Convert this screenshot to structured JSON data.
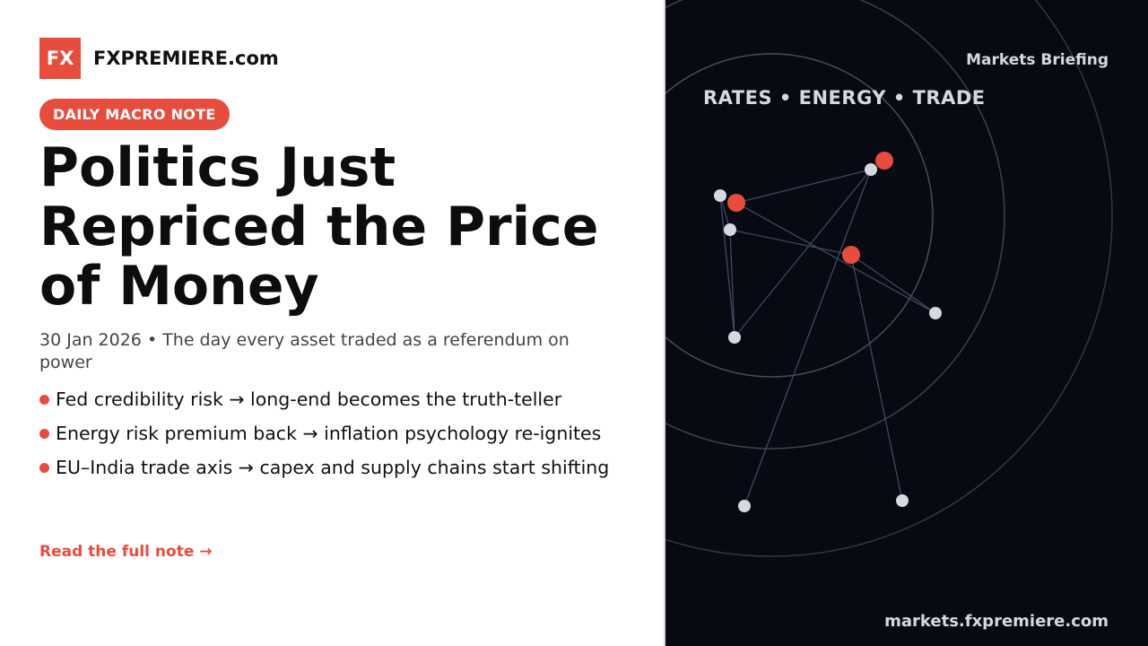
{
  "brand": {
    "logo_text": "FX",
    "name": "FXPREMIERE.com",
    "accent": "#e84c3d"
  },
  "badge": "DAILY MACRO NOTE",
  "headline": {
    "lines": [
      "Politics Just",
      "Repriced the Price",
      "of Money"
    ]
  },
  "subtitle": "30 Jan 2026 • The day every asset traded as a referendum on power",
  "bullets": [
    "Fed credibility risk → long-end becomes the truth-teller",
    "Energy risk premium back → inflation psychology re-ignites",
    "EU–India trade axis → capex and supply chains start shifting"
  ],
  "cta": "Read the full note →",
  "panel": {
    "label": "Markets Briefing",
    "tags": "RATES • ENERGY • TRADE",
    "url": "markets.fxpremiere.com",
    "background": "#070a12",
    "node_colors": {
      "highlight": "#e84c3d",
      "normal": "#d4d9e2"
    },
    "edge_color": "#3d4a5e"
  }
}
